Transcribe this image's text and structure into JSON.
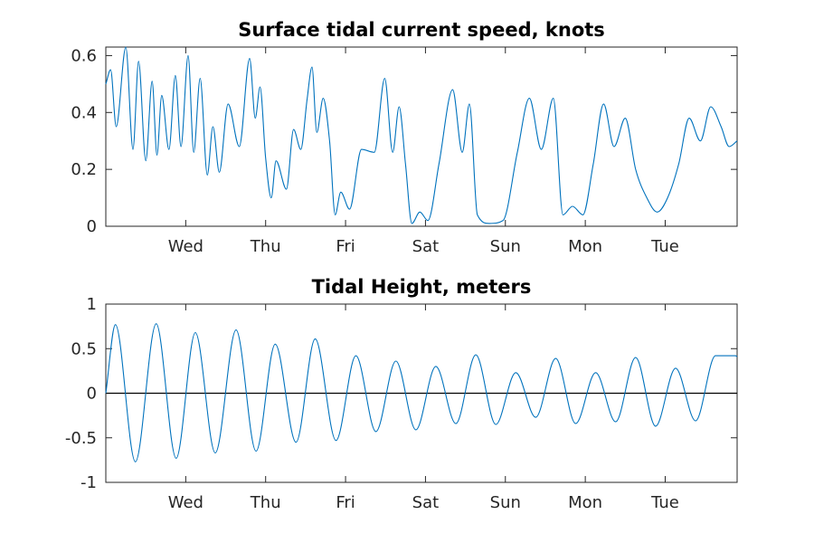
{
  "colors": {
    "series": "#0072bd",
    "axis": "#262626",
    "zero_line": "#000000",
    "background": "#ffffff"
  },
  "chart_data": [
    {
      "type": "line",
      "title": "Surface tidal current speed, knots",
      "xlabel": "",
      "ylabel": "",
      "x_unit": "days",
      "xlim": [
        0,
        7.9
      ],
      "ylim": [
        0,
        0.63
      ],
      "x_tick_positions": [
        1,
        2,
        3,
        4,
        5,
        6,
        7
      ],
      "x_tick_labels": [
        "Wed",
        "Thu",
        "Fri",
        "Sat",
        "Sun",
        "Mon",
        "Tue"
      ],
      "y_ticks": [
        0,
        0.2,
        0.4,
        0.6
      ],
      "y_tick_labels": [
        "0",
        "0.2",
        "0.4",
        "0.6"
      ],
      "grid": false,
      "series": [
        {
          "x": [
            0,
            0.06,
            0.13,
            0.25,
            0.34,
            0.41,
            0.5,
            0.58,
            0.64,
            0.7,
            0.79,
            0.87,
            0.94,
            1.03,
            1.1,
            1.18,
            1.27,
            1.34,
            1.42,
            1.53,
            1.67,
            1.8,
            1.87,
            1.93,
            2.0,
            2.07,
            2.13,
            2.26,
            2.35,
            2.44,
            2.52,
            2.58,
            2.64,
            2.72,
            2.8,
            2.87,
            2.94,
            3.05,
            3.2,
            3.36,
            3.49,
            3.59,
            3.67,
            3.75,
            3.83,
            3.93,
            4.03,
            4.17,
            4.34,
            4.46,
            4.55,
            4.65,
            4.8,
            4.97,
            5.15,
            5.3,
            5.45,
            5.6,
            5.72,
            5.84,
            5.97,
            6.1,
            6.23,
            6.36,
            6.5,
            6.63,
            6.77,
            6.9,
            7.03,
            7.17,
            7.3,
            7.44,
            7.57,
            7.7,
            7.8,
            7.9
          ],
          "y": [
            0.5,
            0.55,
            0.35,
            0.63,
            0.27,
            0.58,
            0.23,
            0.51,
            0.25,
            0.46,
            0.27,
            0.53,
            0.28,
            0.6,
            0.26,
            0.52,
            0.18,
            0.35,
            0.19,
            0.43,
            0.28,
            0.59,
            0.38,
            0.49,
            0.24,
            0.1,
            0.23,
            0.13,
            0.34,
            0.27,
            0.45,
            0.56,
            0.33,
            0.45,
            0.3,
            0.04,
            0.12,
            0.06,
            0.27,
            0.26,
            0.52,
            0.26,
            0.42,
            0.22,
            0.01,
            0.05,
            0.02,
            0.22,
            0.48,
            0.26,
            0.43,
            0.04,
            0.01,
            0.02,
            0.26,
            0.45,
            0.27,
            0.45,
            0.04,
            0.07,
            0.04,
            0.22,
            0.43,
            0.28,
            0.38,
            0.2,
            0.1,
            0.05,
            0.1,
            0.22,
            0.38,
            0.3,
            0.42,
            0.35,
            0.28,
            0.3
          ]
        }
      ]
    },
    {
      "type": "line",
      "title": "Tidal Height, meters",
      "xlabel": "",
      "ylabel": "",
      "x_unit": "days",
      "xlim": [
        0,
        7.9
      ],
      "ylim": [
        -1,
        1
      ],
      "x_tick_positions": [
        1,
        2,
        3,
        4,
        5,
        6,
        7
      ],
      "x_tick_labels": [
        "Wed",
        "Thu",
        "Fri",
        "Sat",
        "Sun",
        "Mon",
        "Tue"
      ],
      "y_ticks": [
        -1,
        -0.5,
        0,
        0.5,
        1
      ],
      "y_tick_labels": [
        "-1",
        "-0.5",
        "0",
        "0.5",
        "1"
      ],
      "grid": false,
      "zero_line": true,
      "series": [
        {
          "x": [
            0,
            0.12,
            0.37,
            0.63,
            0.88,
            1.12,
            1.37,
            1.63,
            1.88,
            2.12,
            2.38,
            2.62,
            2.88,
            3.13,
            3.38,
            3.63,
            3.88,
            4.13,
            4.38,
            4.63,
            4.88,
            5.13,
            5.38,
            5.63,
            5.88,
            6.13,
            6.38,
            6.63,
            6.88,
            7.13,
            7.38,
            7.63,
            7.88,
            7.9
          ],
          "y": [
            0,
            0.77,
            -0.77,
            0.78,
            -0.73,
            0.68,
            -0.67,
            0.71,
            -0.65,
            0.55,
            -0.55,
            0.61,
            -0.53,
            0.42,
            -0.43,
            0.36,
            -0.41,
            0.3,
            -0.34,
            0.43,
            -0.35,
            0.23,
            -0.27,
            0.39,
            -0.34,
            0.23,
            -0.32,
            0.4,
            -0.37,
            0.28,
            -0.31,
            0.42,
            0.42,
            0.41
          ]
        }
      ]
    }
  ]
}
